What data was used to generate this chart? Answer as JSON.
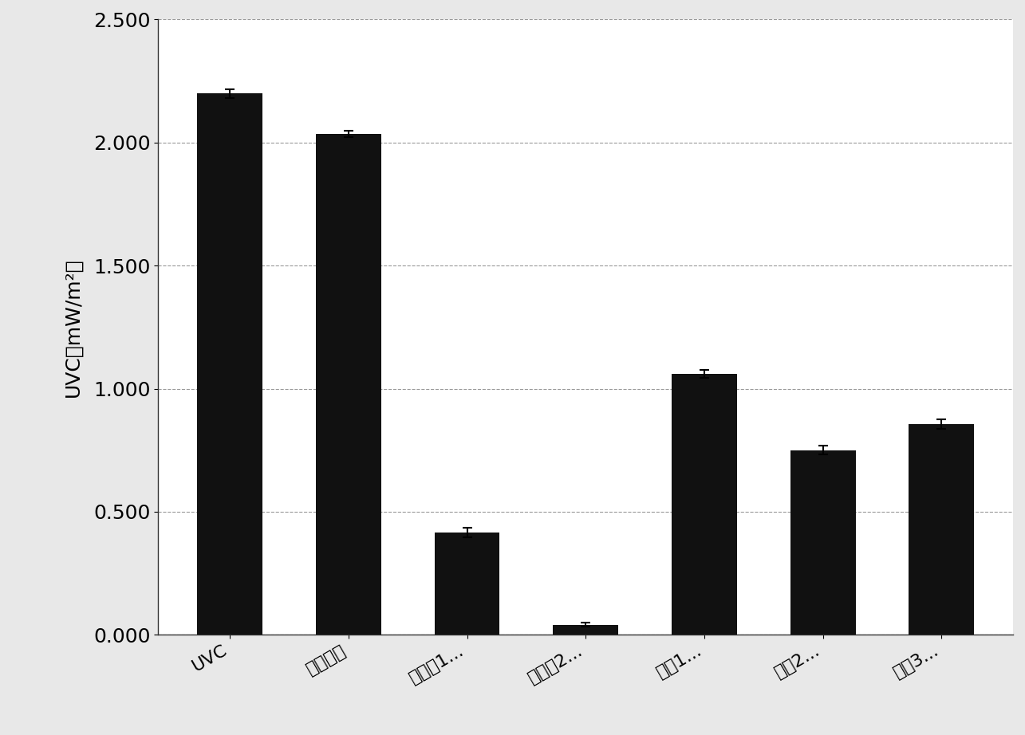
{
  "categories": [
    "UVC",
    "单独基质",
    "实施例1...",
    "实施例2...",
    "比较1...",
    "比较2...",
    "比较3..."
  ],
  "values": [
    2.2,
    2.035,
    0.415,
    0.04,
    1.06,
    0.75,
    0.855
  ],
  "errors": [
    0.018,
    0.012,
    0.02,
    0.008,
    0.015,
    0.018,
    0.02
  ],
  "bar_color": "#111111",
  "ylabel": "UVC（mW/m²）",
  "ylim": [
    0.0,
    2.5
  ],
  "yticks": [
    0.0,
    0.5,
    1.0,
    1.5,
    2.0,
    2.5
  ],
  "ytick_labels": [
    "0.000",
    "0.500",
    "1.000",
    "1.500",
    "2.000",
    "2.500"
  ],
  "background_color": "#ffffff",
  "grid_color": "#999999",
  "bar_width": 0.55,
  "figure_bg": "#e8e8e8"
}
